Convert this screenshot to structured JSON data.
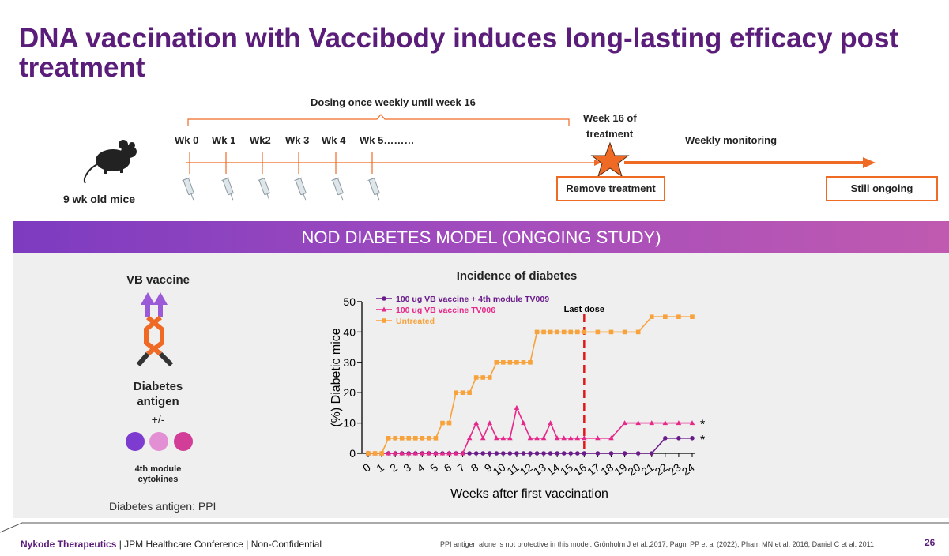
{
  "title": "DNA vaccination with Vaccibody induces long-lasting efficacy post treatment",
  "timeline": {
    "dosing_label": "Dosing once weekly until week 16",
    "weeks": [
      "Wk 0",
      "Wk 1",
      "Wk2",
      "Wk 3",
      "Wk 4",
      "Wk 5………"
    ],
    "mice_label": "9 wk old mice",
    "week16_label_1": "Week 16 of",
    "week16_label_2": "treatment",
    "monitoring_label": "Weekly monitoring",
    "remove_treatment": "Remove treatment",
    "still_ongoing": "Still ongoing",
    "accent_color": "#ee6a25"
  },
  "banner": "NOD DIABETES MODEL (ONGOING STUDY)",
  "left_panel": {
    "vb_vaccine": "VB vaccine",
    "diabetes_antigen_1": "Diabetes",
    "diabetes_antigen_2": "antigen",
    "plus_minus": "+/-",
    "cytokines_1": "4th module",
    "cytokines_2": "cytokines",
    "antigen_note": "Diabetes antigen: PPI",
    "dot_colors": [
      "#7e3bd0",
      "#e38fd3",
      "#d13d97"
    ]
  },
  "chart_data": {
    "type": "line",
    "title": "Incidence of diabetes",
    "xlabel": "Weeks after first vaccination",
    "ylabel": "(%) Diabetic mice",
    "ylim": [
      0,
      50
    ],
    "yticks": [
      0,
      10,
      20,
      30,
      40,
      50
    ],
    "xticks": [
      "0",
      "1",
      "2",
      "3",
      "4",
      "5",
      "6",
      "7",
      "8",
      "9",
      "10",
      "11",
      "12",
      "13",
      "14",
      "15",
      "16",
      "17",
      "18",
      "19",
      "20",
      "21",
      "22",
      "23",
      "24"
    ],
    "annotation": "Last dose",
    "last_dose_week": 16,
    "asterisk": "*",
    "legend_position": "top-left",
    "series": [
      {
        "name": "100 ug VB vaccine + 4th module TV009",
        "color": "#6a1b8a",
        "marker": "circle",
        "x": [
          0,
          0.5,
          1,
          1.5,
          2,
          2.5,
          3,
          3.5,
          4,
          4.5,
          5,
          5.5,
          6,
          6.5,
          7,
          7.5,
          8,
          8.5,
          9,
          9.5,
          10,
          10.5,
          11,
          11.5,
          12,
          12.5,
          13,
          13.5,
          14,
          14.5,
          15,
          15.5,
          16,
          17,
          18,
          19,
          20,
          21,
          22,
          23,
          24
        ],
        "y": [
          0,
          0,
          0,
          0,
          0,
          0,
          0,
          0,
          0,
          0,
          0,
          0,
          0,
          0,
          0,
          0,
          0,
          0,
          0,
          0,
          0,
          0,
          0,
          0,
          0,
          0,
          0,
          0,
          0,
          0,
          0,
          0,
          0,
          0,
          0,
          0,
          0,
          0,
          5,
          5,
          5
        ]
      },
      {
        "name": "100 ug VB vaccine TV006",
        "color": "#e6288a",
        "marker": "triangle",
        "x": [
          0,
          0.5,
          1,
          1.5,
          2,
          2.5,
          3,
          3.5,
          4,
          4.5,
          5,
          5.5,
          6,
          6.5,
          7,
          7.5,
          8,
          8.5,
          9,
          9.5,
          10,
          10.5,
          11,
          11.5,
          12,
          12.5,
          13,
          13.5,
          14,
          14.5,
          15,
          15.5,
          16,
          17,
          18,
          19,
          20,
          21,
          22,
          23,
          24
        ],
        "y": [
          0,
          0,
          0,
          0,
          0,
          0,
          0,
          0,
          0,
          0,
          0,
          0,
          0,
          0,
          0,
          5,
          10,
          5,
          10,
          5,
          5,
          5,
          15,
          10,
          5,
          5,
          5,
          10,
          5,
          5,
          5,
          5,
          5,
          5,
          5,
          10,
          10,
          10,
          10,
          10,
          10
        ]
      },
      {
        "name": "Untreated",
        "color": "#f7a23b",
        "marker": "square",
        "x": [
          0,
          0.5,
          1,
          1.5,
          2,
          2.5,
          3,
          3.5,
          4,
          4.5,
          5,
          5.5,
          6,
          6.5,
          7,
          7.5,
          8,
          8.5,
          9,
          9.5,
          10,
          10.5,
          11,
          11.5,
          12,
          12.5,
          13,
          13.5,
          14,
          14.5,
          15,
          15.5,
          16,
          17,
          18,
          19,
          20,
          21,
          22,
          23,
          24
        ],
        "y": [
          0,
          0,
          0,
          5,
          5,
          5,
          5,
          5,
          5,
          5,
          5,
          10,
          10,
          20,
          20,
          20,
          25,
          25,
          25,
          30,
          30,
          30,
          30,
          30,
          30,
          40,
          40,
          40,
          40,
          40,
          40,
          40,
          40,
          40,
          40,
          40,
          40,
          45,
          45,
          45,
          45
        ]
      }
    ]
  },
  "footer": {
    "company": "Nykode Therapeutics",
    "conference": "| JPM Healthcare Conference | Non-Confidential",
    "references": "PPI antigen alone is not protective in this model. Grönholm J et al.,2017, Pagni PP et al (2022), Pham MN et al, 2016, Daniel C et al. 2011",
    "page": "26"
  }
}
